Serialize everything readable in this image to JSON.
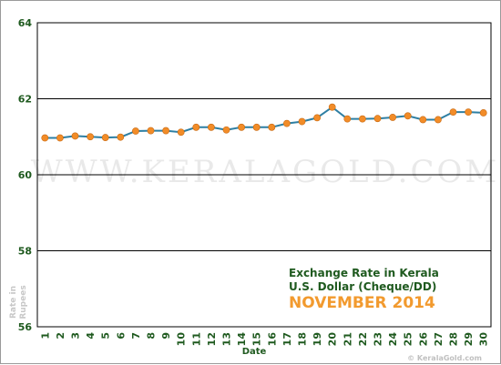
{
  "watermark": "WWW.KERALAGOLD.COM",
  "credit": "© KeralaGold.com",
  "ylabel_lines": [
    "Rate in",
    "Rupees"
  ],
  "chart_data": {
    "type": "line",
    "title": "Exchange Rate in Kerala",
    "subtitle": "U.S. Dollar (Cheque/DD)",
    "period": "NOVEMBER 2014",
    "xlabel": "Date",
    "ylim": [
      56,
      64
    ],
    "yticks": [
      "56",
      "58",
      "60",
      "62",
      "64"
    ],
    "grid": true,
    "x": [
      "1",
      "2",
      "3",
      "4",
      "5",
      "6",
      "7",
      "8",
      "9",
      "10",
      "11",
      "12",
      "13",
      "14",
      "15",
      "16",
      "17",
      "18",
      "19",
      "20",
      "21",
      "22",
      "23",
      "24",
      "25",
      "26",
      "27",
      "28",
      "29",
      "30"
    ],
    "series": [
      {
        "name": "",
        "values": [
          60.97,
          60.97,
          61.02,
          61.0,
          60.98,
          60.99,
          61.15,
          61.16,
          61.16,
          61.12,
          61.25,
          61.25,
          61.18,
          61.25,
          61.25,
          61.25,
          61.35,
          61.4,
          61.5,
          61.78,
          61.47,
          61.47,
          61.48,
          61.51,
          61.55,
          61.45,
          61.45,
          61.65,
          61.65,
          61.63
        ]
      }
    ],
    "colors": {
      "line": "#2e7fa3",
      "marker": "#f28c28",
      "grid": "#000000",
      "axis": "#000000"
    }
  }
}
